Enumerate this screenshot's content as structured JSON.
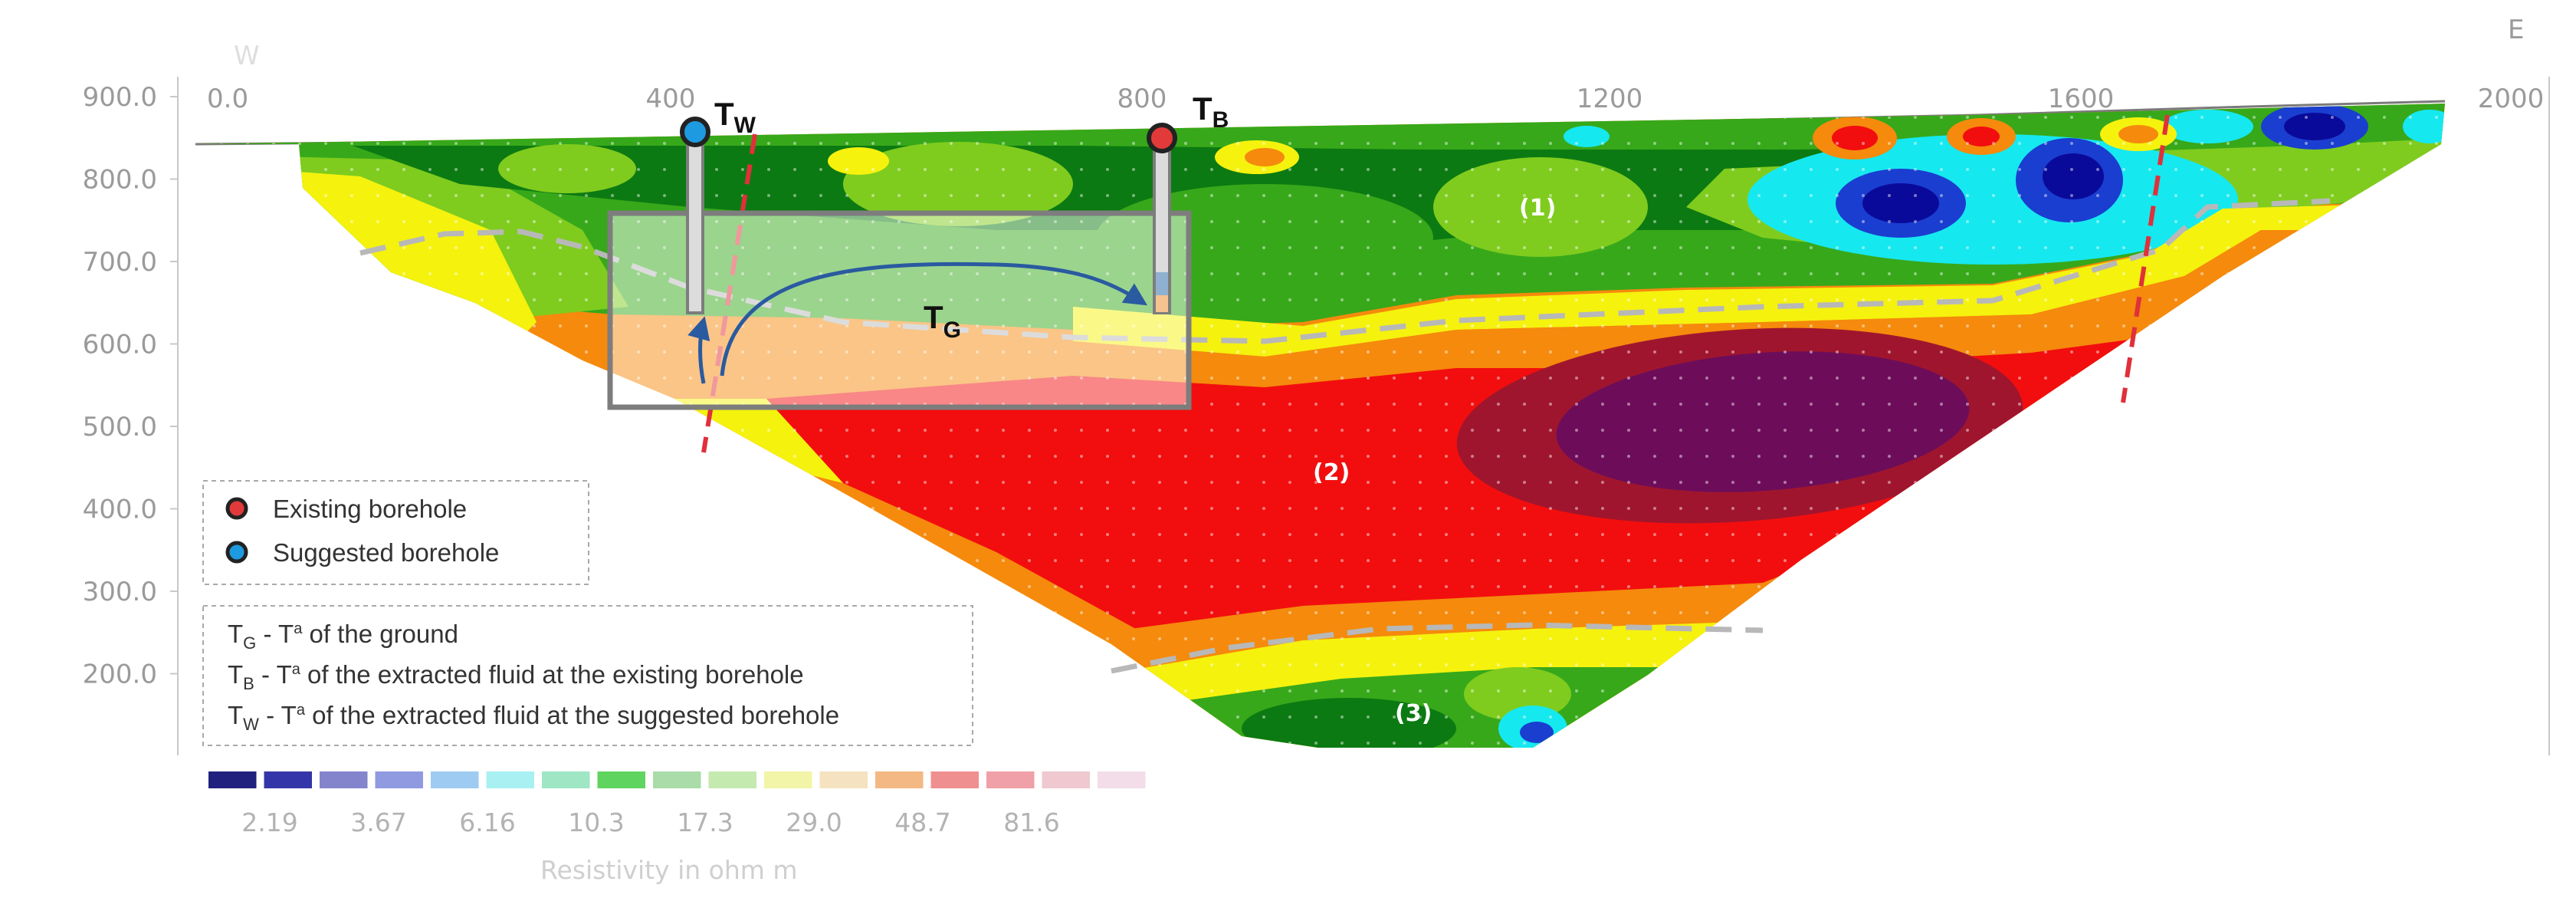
{
  "header": {
    "west_label": "W",
    "east_label": "E"
  },
  "x_axis": {
    "ticks": [
      "0.0",
      "400",
      "800",
      "1200",
      "1600",
      "2000"
    ]
  },
  "y_axis": {
    "ticks": [
      "900.0",
      "800.0",
      "700.0",
      "600.0",
      "500.0",
      "400.0",
      "300.0",
      "200.0"
    ]
  },
  "boreholes": {
    "suggested": {
      "label": "T",
      "subscript": "W",
      "color": "#1e9be0"
    },
    "existing": {
      "label": "T",
      "subscript": "B",
      "color": "#e23a3a"
    }
  },
  "zone": {
    "label": "T",
    "subscript": "G"
  },
  "regions": [
    "(1)",
    "(2)",
    "(3)"
  ],
  "legend_boreholes": [
    {
      "text": "Existing borehole",
      "color": "#e23a3a"
    },
    {
      "text": "Suggested borehole",
      "color": "#1e9be0"
    }
  ],
  "legend_definitions": [
    {
      "symbol": "T",
      "sub": "G",
      "sep": " - T",
      "sup": "a",
      "text": " of the ground"
    },
    {
      "symbol": "T",
      "sub": "B",
      "sep": " - T",
      "sup": "a",
      "text": " of the extracted fluid at the existing borehole"
    },
    {
      "symbol": "T",
      "sub": "W",
      "sep": " - T",
      "sup": "a",
      "text": " of the extracted fluid at the suggested borehole"
    }
  ],
  "colorbar": {
    "colors": [
      "#20207e",
      "#3535aa",
      "#8484cc",
      "#8f9ae0",
      "#9ecbf2",
      "#a8f0f2",
      "#9ee6c4",
      "#5fd45f",
      "#a9dca9",
      "#c4eab0",
      "#f2f4a8",
      "#f5e2c0",
      "#f4b884",
      "#f08f8f",
      "#f0a0a8",
      "#efc8d0",
      "#f2dde8"
    ],
    "labels": [
      "2.19",
      "3.67",
      "6.16",
      "10.3",
      "17.3",
      "29.0",
      "48.7",
      "81.6"
    ],
    "title": "Resistivity in ohm m"
  },
  "colors": {
    "very_high": "#6d0d5a",
    "high": "#a0152e",
    "red": "#f20e0e",
    "orange": "#f58a0c",
    "yellow": "#f5f20e",
    "green_light": "#7fcc1e",
    "green": "#37a81a",
    "green_dark": "#0c7a12",
    "cyan": "#16e8ef",
    "blue": "#1a3ed0",
    "navy": "#0a0a9a",
    "fault": "#e0303a",
    "boundary": "#b8b8b8",
    "flow_arrow": "#2a5aa0"
  }
}
